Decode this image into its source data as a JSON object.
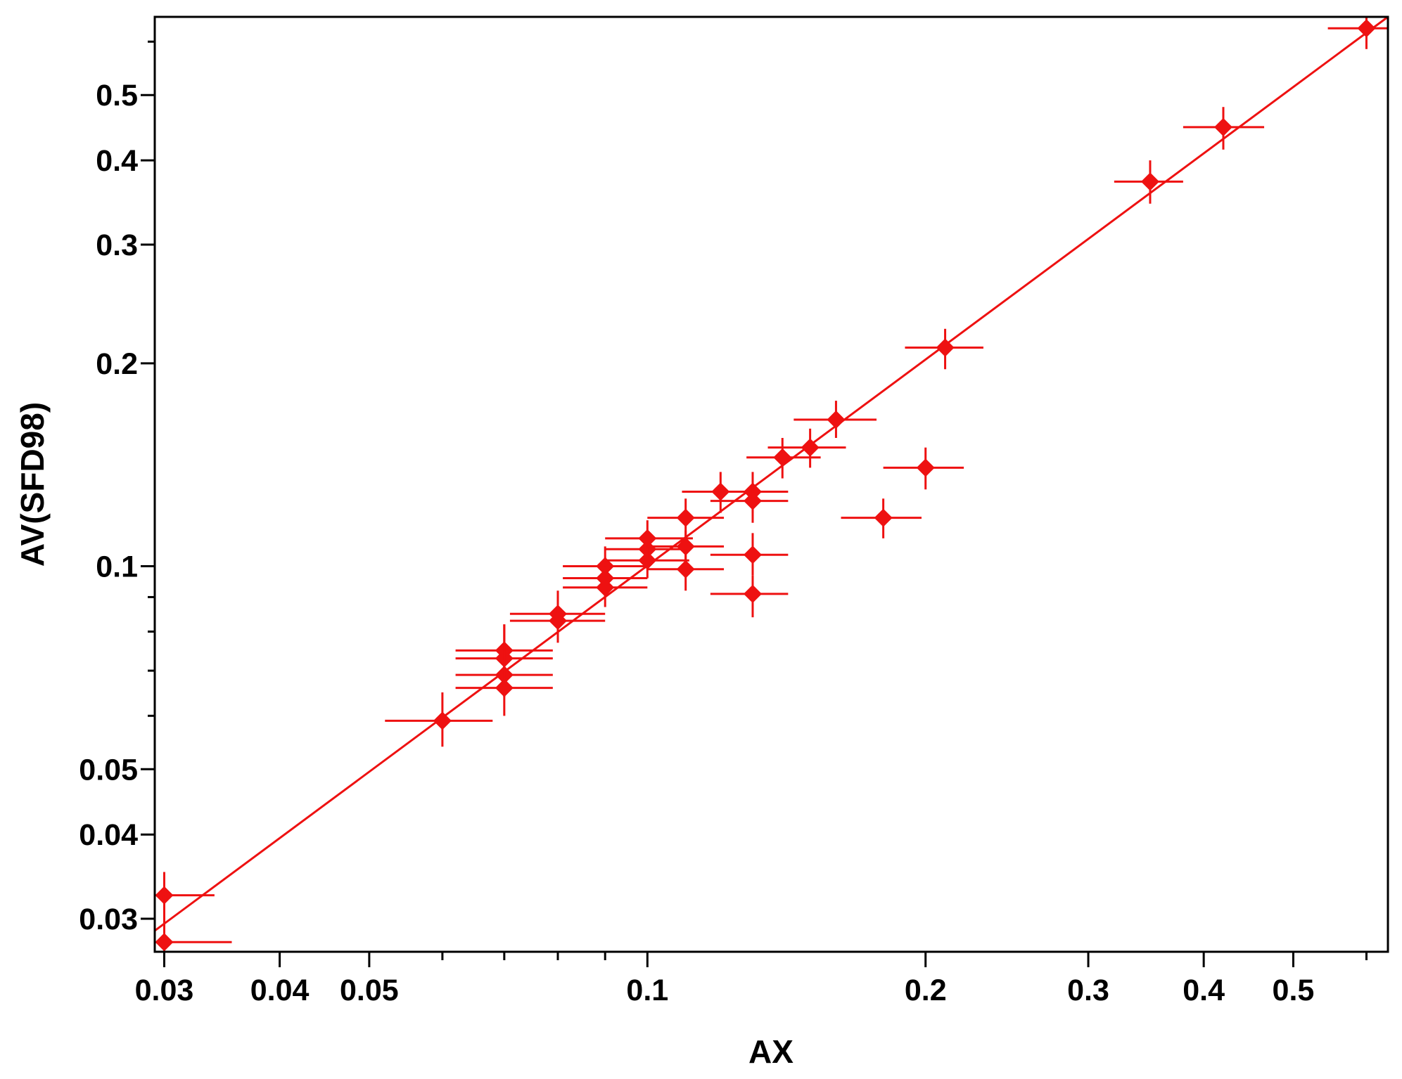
{
  "chart_data": {
    "type": "scatter",
    "title": "",
    "xlabel": "AX",
    "ylabel": "AV(SFD98)",
    "xscale": "log",
    "yscale": "log",
    "xlim": [
      0.0293,
      0.633
    ],
    "ylim": [
      0.0268,
      0.653
    ],
    "xticks": [
      {
        "value": 0.03,
        "label": "0.03"
      },
      {
        "value": 0.04,
        "label": "0.04"
      },
      {
        "value": 0.05,
        "label": "0.05"
      },
      {
        "value": 0.1,
        "label": "0.1"
      },
      {
        "value": 0.2,
        "label": "0.2"
      },
      {
        "value": 0.3,
        "label": "0.3"
      },
      {
        "value": 0.4,
        "label": "0.4"
      },
      {
        "value": 0.5,
        "label": "0.5"
      }
    ],
    "yticks": [
      {
        "value": 0.03,
        "label": "0.03"
      },
      {
        "value": 0.04,
        "label": "0.04"
      },
      {
        "value": 0.05,
        "label": "0.05"
      },
      {
        "value": 0.1,
        "label": "0.1"
      },
      {
        "value": 0.2,
        "label": "0.2"
      },
      {
        "value": 0.3,
        "label": "0.3"
      },
      {
        "value": 0.4,
        "label": "0.4"
      },
      {
        "value": 0.5,
        "label": "0.5"
      }
    ],
    "grid": false,
    "color": "#ee1111",
    "fit_line": {
      "x": [
        0.0293,
        0.633
      ],
      "y": [
        0.0288,
        0.658
      ]
    },
    "series": [
      {
        "points": [
          {
            "x": 0.03,
            "y": 0.0325,
            "xerr": [
              0.0292,
              0.034
            ],
            "yerr": [
              0.0286,
              0.0352
            ]
          },
          {
            "x": 0.03,
            "y": 0.0277,
            "xerr": [
              0.0292,
              0.0355
            ],
            "yerr": [
              0.0268,
              0.0325
            ]
          },
          {
            "x": 0.06,
            "y": 0.059,
            "xerr": [
              0.052,
              0.068
            ],
            "yerr": [
              0.054,
              0.065
            ]
          },
          {
            "x": 0.07,
            "y": 0.075,
            "xerr": [
              0.062,
              0.079
            ],
            "yerr": [
              0.068,
              0.082
            ]
          },
          {
            "x": 0.07,
            "y": 0.073,
            "xerr": [
              0.062,
              0.079
            ],
            "yerr": [
              0.068,
              0.082
            ]
          },
          {
            "x": 0.07,
            "y": 0.069,
            "xerr": [
              0.062,
              0.079
            ],
            "yerr": [
              0.064,
              0.075
            ]
          },
          {
            "x": 0.07,
            "y": 0.066,
            "xerr": [
              0.062,
              0.079
            ],
            "yerr": [
              0.06,
              0.072
            ]
          },
          {
            "x": 0.08,
            "y": 0.085,
            "xerr": [
              0.071,
              0.09
            ],
            "yerr": [
              0.078,
              0.092
            ]
          },
          {
            "x": 0.08,
            "y": 0.083,
            "xerr": [
              0.071,
              0.09
            ],
            "yerr": [
              0.077,
              0.09
            ]
          },
          {
            "x": 0.09,
            "y": 0.1,
            "xerr": [
              0.081,
              0.1
            ],
            "yerr": [
              0.093,
              0.107
            ]
          },
          {
            "x": 0.09,
            "y": 0.096,
            "xerr": [
              0.081,
              0.1
            ],
            "yerr": [
              0.09,
              0.103
            ]
          },
          {
            "x": 0.09,
            "y": 0.093,
            "xerr": [
              0.081,
              0.1
            ],
            "yerr": [
              0.087,
              0.1
            ]
          },
          {
            "x": 0.1,
            "y": 0.106,
            "xerr": [
              0.09,
              0.111
            ],
            "yerr": [
              0.099,
              0.113
            ]
          },
          {
            "x": 0.1,
            "y": 0.102,
            "xerr": [
              0.09,
              0.111
            ],
            "yerr": [
              0.096,
              0.109
            ]
          },
          {
            "x": 0.1,
            "y": 0.11,
            "xerr": [
              0.09,
              0.112
            ],
            "yerr": [
              0.103,
              0.117
            ]
          },
          {
            "x": 0.11,
            "y": 0.118,
            "xerr": [
              0.1,
              0.121
            ],
            "yerr": [
              0.11,
              0.126
            ]
          },
          {
            "x": 0.11,
            "y": 0.107,
            "xerr": [
              0.1,
              0.121
            ],
            "yerr": [
              0.1,
              0.113
            ]
          },
          {
            "x": 0.11,
            "y": 0.099,
            "xerr": [
              0.1,
              0.121
            ],
            "yerr": [
              0.092,
              0.106
            ]
          },
          {
            "x": 0.12,
            "y": 0.129,
            "xerr": [
              0.109,
              0.131
            ],
            "yerr": [
              0.12,
              0.138
            ]
          },
          {
            "x": 0.13,
            "y": 0.129,
            "xerr": [
              0.117,
              0.142
            ],
            "yerr": [
              0.12,
              0.138
            ]
          },
          {
            "x": 0.13,
            "y": 0.125,
            "xerr": [
              0.117,
              0.142
            ],
            "yerr": [
              0.116,
              0.134
            ]
          },
          {
            "x": 0.13,
            "y": 0.104,
            "xerr": [
              0.117,
              0.142
            ],
            "yerr": [
              0.097,
              0.112
            ]
          },
          {
            "x": 0.13,
            "y": 0.091,
            "xerr": [
              0.117,
              0.142
            ],
            "yerr": [
              0.084,
              0.097
            ]
          },
          {
            "x": 0.14,
            "y": 0.145,
            "xerr": [
              0.128,
              0.154
            ],
            "yerr": [
              0.135,
              0.155
            ]
          },
          {
            "x": 0.15,
            "y": 0.15,
            "xerr": [
              0.135,
              0.164
            ],
            "yerr": [
              0.14,
              0.16
            ]
          },
          {
            "x": 0.16,
            "y": 0.165,
            "xerr": [
              0.144,
              0.177
            ],
            "yerr": [
              0.155,
              0.176
            ]
          },
          {
            "x": 0.18,
            "y": 0.118,
            "xerr": [
              0.162,
              0.198
            ],
            "yerr": [
              0.11,
              0.126
            ]
          },
          {
            "x": 0.2,
            "y": 0.14,
            "xerr": [
              0.18,
              0.22
            ],
            "yerr": [
              0.13,
              0.15
            ]
          },
          {
            "x": 0.21,
            "y": 0.211,
            "xerr": [
              0.19,
              0.231
            ],
            "yerr": [
              0.196,
              0.225
            ]
          },
          {
            "x": 0.35,
            "y": 0.372,
            "xerr": [
              0.32,
              0.38
            ],
            "yerr": [
              0.345,
              0.4
            ]
          },
          {
            "x": 0.42,
            "y": 0.448,
            "xerr": [
              0.38,
              0.465
            ],
            "yerr": [
              0.415,
              0.48
            ]
          },
          {
            "x": 0.6,
            "y": 0.628,
            "xerr": [
              0.545,
              0.632
            ],
            "yerr": [
              0.585,
              0.665
            ]
          }
        ]
      }
    ]
  }
}
